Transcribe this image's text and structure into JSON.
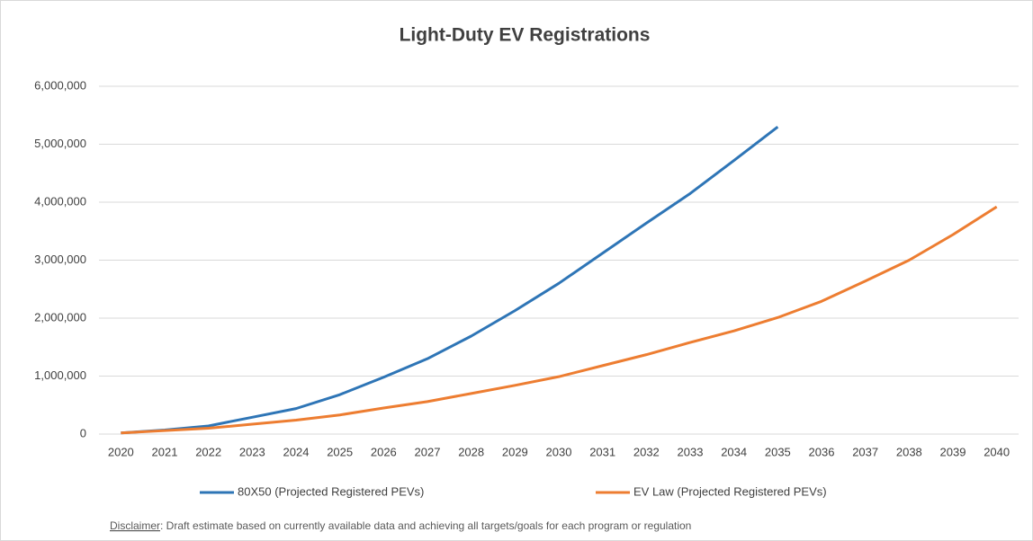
{
  "chart_data": {
    "type": "line",
    "title": "Light-Duty EV Registrations",
    "categories": [
      "2020",
      "2021",
      "2022",
      "2023",
      "2024",
      "2025",
      "2026",
      "2027",
      "2028",
      "2029",
      "2030",
      "2031",
      "2032",
      "2033",
      "2034",
      "2035",
      "2036",
      "2037",
      "2038",
      "2039",
      "2040"
    ],
    "series": [
      {
        "name": "80X50 (Projected Registered PEVs)",
        "color": "#2e75b6",
        "values": [
          20000,
          70000,
          140000,
          290000,
          440000,
          680000,
          980000,
          1300000,
          1690000,
          2130000,
          2600000,
          3120000,
          3640000,
          4150000,
          4720000,
          5300000,
          null,
          null,
          null,
          null,
          null
        ]
      },
      {
        "name": "EV Law (Projected Registered PEVs)",
        "color": "#ed7d31",
        "values": [
          20000,
          60000,
          100000,
          170000,
          240000,
          330000,
          450000,
          560000,
          700000,
          840000,
          990000,
          1180000,
          1370000,
          1580000,
          1780000,
          2010000,
          2290000,
          2640000,
          3000000,
          3440000,
          3920000
        ]
      }
    ],
    "ylim": [
      0,
      6000000
    ],
    "yticks": [
      0,
      {
        "value": 1000000,
        "label": "1,000,000"
      },
      {
        "value": 2000000,
        "label": "2,000,000"
      },
      {
        "value": 3000000,
        "label": "3,000,000"
      },
      {
        "value": 4000000,
        "label": "4,000,000"
      },
      {
        "value": 5000000,
        "label": "5,000,000"
      },
      {
        "value": 6000000,
        "label": "6,000,000"
      }
    ],
    "grid": true,
    "legend": "bottom",
    "disclaimer_label": "Disclaimer",
    "disclaimer_text": ": Draft estimate based on currently available data and achieving all targets/goals for each program or regulation"
  }
}
